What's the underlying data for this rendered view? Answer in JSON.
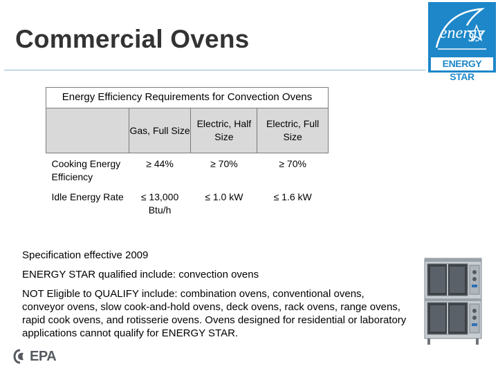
{
  "slide": {
    "title": "Commercial Ovens"
  },
  "logo": {
    "script_text": "energy",
    "bar_text": "ENERGY STAR",
    "color": "#1d87c9"
  },
  "table": {
    "caption": "Energy Efficiency Requirements for Convection Ovens",
    "columns": [
      "",
      "Gas, Full Size",
      "Electric, Half Size",
      "Electric, Full Size"
    ],
    "rows": [
      {
        "label": "Cooking Energy Efficiency",
        "values": [
          "≥ 44%",
          "≥ 70%",
          "≥ 70%"
        ]
      },
      {
        "label": "Idle Energy Rate",
        "values": [
          "≤ 13,000 Btu/h",
          "≤ 1.0 kW",
          "≤ 1.6 kW"
        ]
      }
    ]
  },
  "notes": {
    "effective": "Specification effective 2009",
    "qualified": "ENERGY STAR qualified include: convection ovens",
    "not_eligible": "NOT Eligible to QUALIFY include: combination ovens, conventional ovens, conveyor ovens, slow cook-and-hold ovens, deck ovens, rack ovens, range ovens, rapid cook ovens, and rotisserie ovens. Ovens designed for residential or laboratory applications cannot qualify for ENERGY STAR."
  },
  "footer": {
    "agency": "EPA",
    "agency_color": "#555a60"
  },
  "icons": [
    "energy-star-logo",
    "convection-oven-image",
    "epa-logo-icon"
  ]
}
